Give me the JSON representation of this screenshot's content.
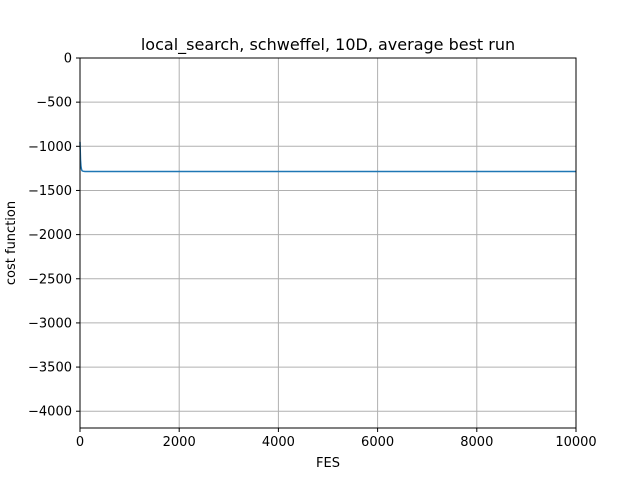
{
  "chart_data": {
    "type": "line",
    "title": "local_search, schweffel, 10D, average best run",
    "xlabel": "FES",
    "ylabel": "cost function",
    "xlim": [
      0,
      10000
    ],
    "ylim": [
      -4190,
      0
    ],
    "xticks": [
      0,
      2000,
      4000,
      6000,
      8000,
      10000
    ],
    "xtick_labels": [
      "0",
      "2000",
      "4000",
      "6000",
      "8000",
      "10000"
    ],
    "yticks": [
      0,
      -500,
      -1000,
      -1500,
      -2000,
      -2500,
      -3000,
      -3500,
      -4000
    ],
    "ytick_labels": [
      "0",
      "−500",
      "−1000",
      "−1500",
      "−2000",
      "−2500",
      "−3000",
      "−3500",
      "−4000"
    ],
    "grid": true,
    "series": [
      {
        "color": "#1f77b4",
        "x": [
          0,
          10,
          20,
          30,
          40,
          60,
          100,
          200,
          500,
          1000,
          2000,
          4000,
          6000,
          8000,
          10000
        ],
        "y": [
          -950,
          -1150,
          -1230,
          -1260,
          -1275,
          -1282,
          -1285,
          -1285,
          -1285,
          -1285,
          -1285,
          -1285,
          -1285,
          -1285,
          -1285
        ]
      }
    ]
  }
}
